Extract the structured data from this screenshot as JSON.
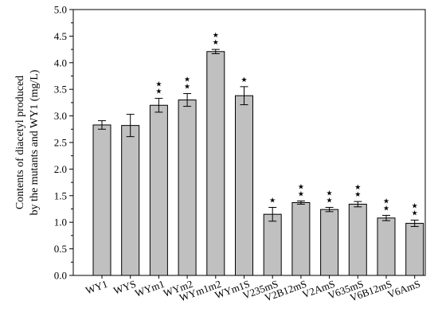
{
  "chart_data": {
    "type": "bar",
    "ylabel_lines": [
      "Contents of diacetyl produced",
      "by the mutants and WY1 (mg/L)"
    ],
    "ylim": [
      0.0,
      5.0
    ],
    "yticks": [
      "0.0",
      "0.5",
      "1.0",
      "1.5",
      "2.0",
      "2.5",
      "3.0",
      "3.5",
      "4.0",
      "4.5",
      "5.0"
    ],
    "grid": false,
    "bar_color": "#c0c0c0",
    "categories": [
      "WY1",
      "WYS",
      "WYm1",
      "WYm2",
      "WYm1m2",
      "WYm1S",
      "V235mS",
      "V2B12mS",
      "V2AmS",
      "V635mS",
      "V6B12mS",
      "V6AmS"
    ],
    "values": [
      2.83,
      2.82,
      3.2,
      3.3,
      4.21,
      3.38,
      1.15,
      1.37,
      1.24,
      1.34,
      1.08,
      0.98
    ],
    "errors": [
      0.08,
      0.21,
      0.13,
      0.12,
      0.04,
      0.17,
      0.13,
      0.03,
      0.04,
      0.05,
      0.05,
      0.06
    ],
    "significance_stars": [
      0,
      0,
      2,
      2,
      2,
      1,
      1,
      2,
      2,
      2,
      2,
      2
    ]
  }
}
